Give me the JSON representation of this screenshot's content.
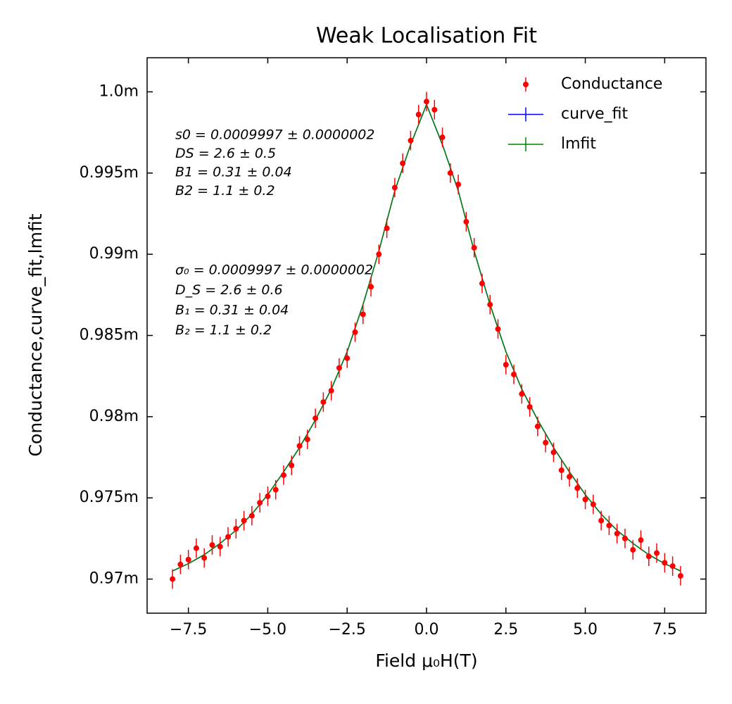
{
  "chart_data": {
    "type": "errorbar",
    "title": "Weak Localisation Fit",
    "xlabel": "Field μ₀H(T)",
    "ylabel": "Conductance,curve_fit,lmfit",
    "xlim": [
      -8.8,
      8.8
    ],
    "ylim": [
      0.0009679,
      0.0010021
    ],
    "xticks": [
      {
        "value": -7.5,
        "label": "−7.5"
      },
      {
        "value": -5,
        "label": "−5.0"
      },
      {
        "value": -2.5,
        "label": "−2.5"
      },
      {
        "value": 0,
        "label": "0.0"
      },
      2.5,
      {
        "value": 5,
        "label": "5.0"
      },
      7.5
    ],
    "yticks": [
      {
        "value": 0.00097,
        "label": "0.97m"
      },
      {
        "value": 0.000975,
        "label": "0.975m"
      },
      {
        "value": 0.00098,
        "label": "0.98m"
      },
      {
        "value": 0.000985,
        "label": "0.985m"
      },
      {
        "value": 0.00099,
        "label": "0.99m"
      },
      {
        "value": 0.000995,
        "label": "0.995m"
      },
      {
        "value": 0.001,
        "label": "1.0m"
      }
    ],
    "legend": "upper right",
    "series": [
      {
        "name": "Conductance",
        "kind": "errorbar",
        "color": "#ff0000",
        "yerr": 6e-07,
        "x": [
          -8,
          -7.75,
          -7.5,
          -7.25,
          -7,
          -6.75,
          -6.5,
          -6.25,
          -6,
          -5.75,
          -5.5,
          -5.25,
          -5,
          -4.75,
          -4.5,
          -4.25,
          -4,
          -3.75,
          -3.5,
          -3.25,
          -3,
          -2.75,
          -2.5,
          -2.25,
          -2,
          -1.75,
          -1.5,
          -1.25,
          -1,
          -0.75,
          -0.5,
          -0.25,
          0,
          0.25,
          0.5,
          0.75,
          1,
          1.25,
          1.5,
          1.75,
          2,
          2.25,
          2.5,
          2.75,
          3,
          3.25,
          3.5,
          3.75,
          4,
          4.25,
          4.5,
          4.75,
          5,
          5.25,
          5.5,
          5.75,
          6,
          6.25,
          6.5,
          6.75,
          7,
          7.25,
          7.5,
          7.75,
          8
        ],
        "values": [
          0.00097,
          0.0009709,
          0.0009712,
          0.0009719,
          0.0009713,
          0.0009721,
          0.000972,
          0.0009726,
          0.0009731,
          0.0009736,
          0.0009739,
          0.0009747,
          0.0009751,
          0.0009755,
          0.0009764,
          0.000977,
          0.0009782,
          0.0009786,
          0.0009799,
          0.0009809,
          0.0009816,
          0.000983,
          0.0009836,
          0.0009852,
          0.0009863,
          0.000988,
          0.00099,
          0.0009916,
          0.0009941,
          0.0009956,
          0.000997,
          0.0009986,
          0.0009994,
          0.0009989,
          0.0009972,
          0.000995,
          0.0009943,
          0.000992,
          0.0009904,
          0.0009882,
          0.0009869,
          0.0009854,
          0.0009832,
          0.0009826,
          0.0009814,
          0.0009806,
          0.0009794,
          0.0009784,
          0.0009778,
          0.0009767,
          0.0009763,
          0.0009756,
          0.0009749,
          0.0009746,
          0.0009736,
          0.0009733,
          0.0009728,
          0.0009725,
          0.0009718,
          0.0009724,
          0.0009714,
          0.0009716,
          0.000971,
          0.0009708,
          0.0009702
        ]
      },
      {
        "name": "curve_fit",
        "kind": "line",
        "color": "#0000ff",
        "x": [
          -8,
          -7.5,
          -7,
          -6.5,
          -6,
          -5.5,
          -5,
          -4.5,
          -4,
          -3.5,
          -3,
          -2.5,
          -2,
          -1.5,
          -1,
          -0.5,
          0,
          0.5,
          1,
          1.5,
          2,
          2.5,
          3,
          3.5,
          4,
          4.5,
          5,
          5.5,
          6,
          6.5,
          7,
          7.5,
          8
        ],
        "values": [
          0.0009705,
          0.00097095,
          0.0009715,
          0.0009722,
          0.000973,
          0.000974,
          0.0009752,
          0.0009766,
          0.0009781,
          0.0009798,
          0.0009817,
          0.000984,
          0.0009869,
          0.0009902,
          0.0009939,
          0.00099675,
          0.00099922,
          0.00099675,
          0.0009939,
          0.0009902,
          0.0009869,
          0.000984,
          0.0009817,
          0.0009798,
          0.0009781,
          0.0009766,
          0.0009752,
          0.000974,
          0.000973,
          0.0009722,
          0.0009715,
          0.00097095,
          0.0009705
        ]
      },
      {
        "name": "lmfit",
        "kind": "line",
        "color": "#008000",
        "x": [
          -8,
          -7.5,
          -7,
          -6.5,
          -6,
          -5.5,
          -5,
          -4.5,
          -4,
          -3.5,
          -3,
          -2.5,
          -2,
          -1.5,
          -1,
          -0.5,
          0,
          0.5,
          1,
          1.5,
          2,
          2.5,
          3,
          3.5,
          4,
          4.5,
          5,
          5.5,
          6,
          6.5,
          7,
          7.5,
          8
        ],
        "values": [
          0.0009705,
          0.00097095,
          0.0009715,
          0.0009722,
          0.000973,
          0.000974,
          0.0009752,
          0.0009766,
          0.0009781,
          0.0009798,
          0.0009817,
          0.000984,
          0.0009869,
          0.0009902,
          0.0009939,
          0.00099675,
          0.00099922,
          0.00099675,
          0.0009939,
          0.0009902,
          0.0009869,
          0.000984,
          0.0009817,
          0.0009798,
          0.0009781,
          0.0009766,
          0.0009752,
          0.000974,
          0.000973,
          0.0009722,
          0.0009715,
          0.00097095,
          0.0009705
        ]
      }
    ],
    "annotations": [
      {
        "color": "#0000ff",
        "lines": [
          "s0 = 0.0009997 ± 0.0000002",
          "DS = 2.6 ± 0.5",
          "B1 = 0.31 ± 0.04",
          "B2 = 1.1 ± 0.2"
        ]
      },
      {
        "color": "#008000",
        "lines": [
          "σ₀ = 0.0009997 ± 0.0000002",
          "D_S = 2.6 ± 0.6",
          "B₁ = 0.31 ± 0.04",
          "B₂ = 1.1 ± 0.2"
        ]
      }
    ]
  }
}
